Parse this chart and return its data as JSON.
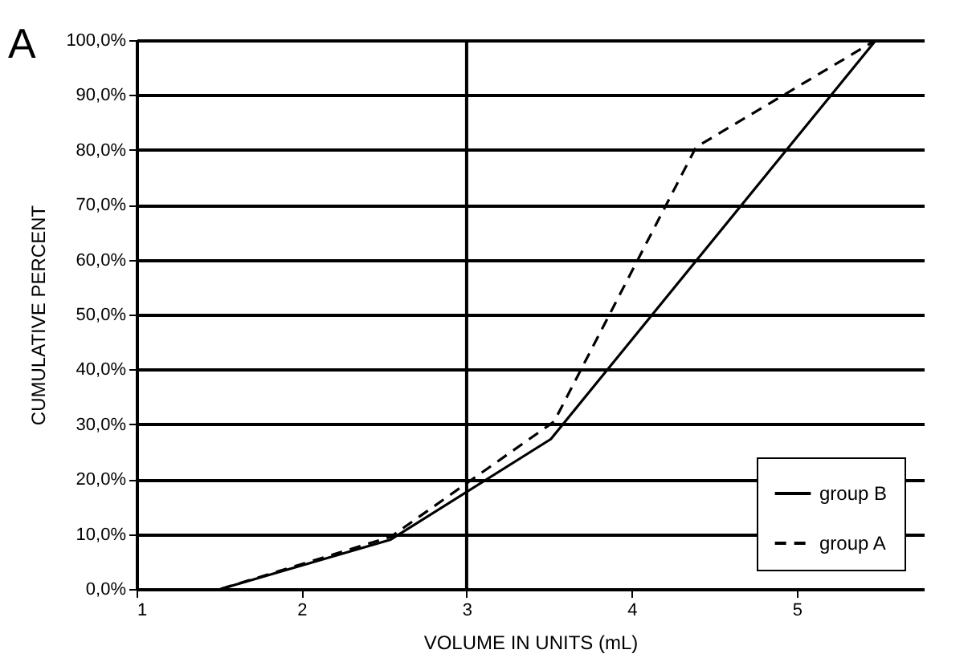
{
  "chart_data": {
    "type": "line",
    "xlabel": "VOLUME IN UNITS (mL)",
    "ylabel": "CUMULATIVE PERCENT",
    "annotations": [
      "A"
    ],
    "xlim": [
      1,
      5.77
    ],
    "xticks": [
      1,
      2,
      3,
      4,
      5
    ],
    "ylim": [
      0,
      100
    ],
    "yticks": [
      {
        "value": 0,
        "label": "0,0%"
      },
      {
        "value": 10,
        "label": "10,0%"
      },
      {
        "value": 20,
        "label": "20,0%"
      },
      {
        "value": 30,
        "label": "30,0%"
      },
      {
        "value": 40,
        "label": "40,0%"
      },
      {
        "value": 50,
        "label": "50,0%"
      },
      {
        "value": 60,
        "label": "60,0%"
      },
      {
        "value": 70,
        "label": "70,0%"
      },
      {
        "value": 80,
        "label": "80,0%"
      },
      {
        "value": 90,
        "label": "90,0%"
      },
      {
        "value": 100,
        "label": "100,0%"
      }
    ],
    "grid": "y",
    "legend": "bottom right",
    "marker": "none",
    "ref_lines": [
      {
        "axis": "x",
        "value": 3,
        "color": "#000000"
      }
    ],
    "series": [
      {
        "name": "group B",
        "color": "#000000",
        "line_style": "solid",
        "x": [
          1.51,
          2.54,
          3.51,
          5.48
        ],
        "values": [
          0,
          9,
          27.3,
          100
        ]
      },
      {
        "name": "group A",
        "color": "#000000",
        "line_style": "dashed",
        "x": [
          1.51,
          2.54,
          3.53,
          4.39,
          5.48
        ],
        "values": [
          0,
          9.5,
          30.5,
          80.5,
          100
        ]
      }
    ]
  }
}
